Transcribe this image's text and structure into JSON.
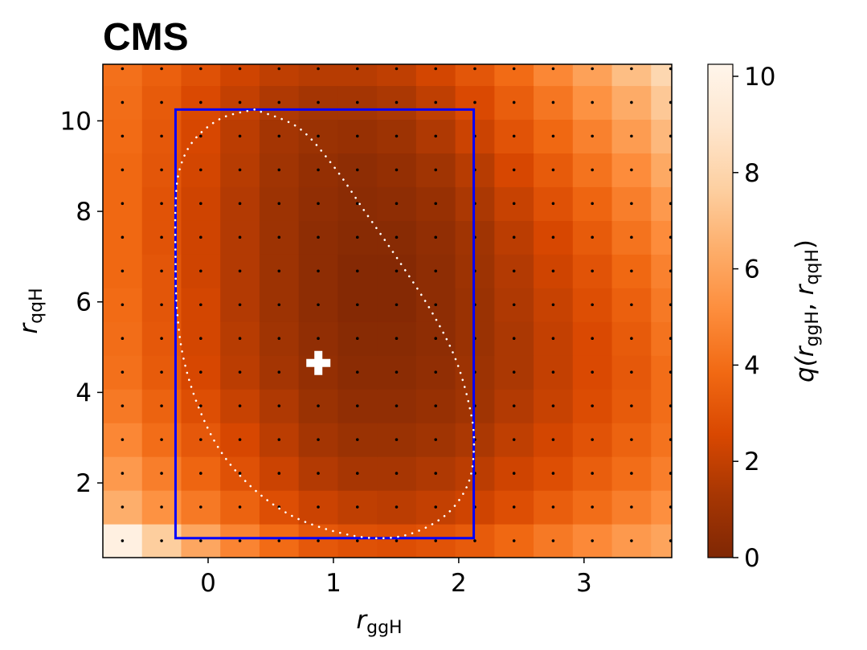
{
  "chart_data": {
    "type": "heatmap",
    "title": "CMS",
    "xlabel": {
      "main": "r",
      "sub": "ggH"
    },
    "ylabel": {
      "main": "r",
      "sub": "qqH"
    },
    "colorbar_label": {
      "q": "q(",
      "r1": "r",
      "sub1": "ggH",
      "comma": ", ",
      "r2": "r",
      "sub2": "qqH",
      "close": ")"
    },
    "xlim": [
      -0.84,
      3.7
    ],
    "ylim": [
      0.35,
      11.25
    ],
    "x_ticks": [
      "0",
      "1",
      "2",
      "3"
    ],
    "x_tick_values": [
      0,
      1,
      2,
      3
    ],
    "y_ticks": [
      "2",
      "4",
      "6",
      "8",
      "10"
    ],
    "y_tick_values": [
      2,
      4,
      6,
      8,
      10
    ],
    "colorbar_ticks": [
      "0",
      "2",
      "4",
      "6",
      "8",
      "10"
    ],
    "colorbar_tick_values": [
      0,
      2,
      4,
      6,
      8,
      10
    ],
    "colorbar_range": [
      0,
      10.25
    ],
    "grid_x_start": -0.84,
    "grid_x_step": 0.3125,
    "grid_y_start": 0.35,
    "grid_y_step": 0.745,
    "z": [
      [
        9.8,
        7.6,
        6.1,
        4.8,
        3.9,
        3.2,
        2.9,
        2.8,
        3.0,
        3.3,
        3.8,
        4.4,
        5.0,
        5.6,
        6.0
      ],
      [
        6.4,
        5.3,
        4.4,
        3.6,
        2.8,
        2.2,
        1.9,
        1.8,
        2.0,
        2.3,
        2.8,
        3.4,
        4.0,
        4.6,
        5.2
      ],
      [
        5.6,
        4.6,
        3.7,
        2.9,
        2.2,
        1.6,
        1.3,
        1.3,
        1.5,
        1.8,
        2.3,
        2.8,
        3.4,
        4.0,
        4.6
      ],
      [
        4.9,
        4.0,
        3.2,
        2.5,
        1.8,
        1.2,
        0.9,
        0.9,
        1.1,
        1.4,
        1.9,
        2.4,
        3.0,
        3.6,
        4.2
      ],
      [
        4.4,
        3.6,
        2.8,
        2.1,
        1.5,
        0.9,
        0.6,
        0.6,
        0.8,
        1.1,
        1.6,
        2.1,
        2.7,
        3.3,
        4.0
      ],
      [
        4.1,
        3.3,
        2.5,
        1.8,
        1.2,
        0.7,
        0.4,
        0.4,
        0.6,
        1.0,
        1.4,
        2.0,
        2.6,
        3.2,
        4.0
      ],
      [
        4.0,
        3.2,
        2.4,
        1.7,
        1.1,
        0.6,
        0.3,
        0.3,
        0.5,
        0.9,
        1.4,
        2.0,
        2.6,
        3.3,
        4.2
      ],
      [
        3.9,
        3.1,
        2.4,
        1.6,
        1.0,
        0.5,
        0.2,
        0.2,
        0.5,
        0.9,
        1.5,
        2.1,
        2.8,
        3.5,
        4.4
      ],
      [
        3.8,
        3.1,
        2.3,
        1.6,
        1.0,
        0.5,
        0.2,
        0.2,
        0.5,
        1.0,
        1.6,
        2.3,
        3.0,
        3.8,
        4.7
      ],
      [
        3.8,
        3.0,
        2.3,
        1.6,
        1.0,
        0.5,
        0.3,
        0.3,
        0.6,
        1.1,
        1.8,
        2.5,
        3.3,
        4.2,
        5.1
      ],
      [
        3.8,
        3.0,
        2.3,
        1.6,
        1.0,
        0.6,
        0.4,
        0.5,
        0.8,
        1.4,
        2.1,
        2.9,
        3.7,
        4.6,
        5.6
      ],
      [
        3.8,
        3.1,
        2.4,
        1.7,
        1.1,
        0.7,
        0.5,
        0.7,
        1.1,
        1.7,
        2.5,
        3.3,
        4.2,
        5.1,
        6.2
      ],
      [
        3.9,
        3.2,
        2.5,
        1.8,
        1.2,
        0.9,
        0.8,
        1.0,
        1.5,
        2.2,
        3.0,
        3.8,
        4.7,
        5.7,
        6.8
      ],
      [
        4.0,
        3.3,
        2.6,
        2.0,
        1.5,
        1.2,
        1.2,
        1.4,
        1.9,
        2.6,
        3.4,
        4.3,
        5.3,
        6.3,
        7.4
      ],
      [
        4.1,
        3.5,
        2.9,
        2.3,
        1.9,
        1.7,
        1.7,
        1.9,
        2.4,
        3.1,
        3.9,
        4.9,
        5.9,
        7.0,
        8.1
      ],
      [
        4.2,
        3.7,
        3.1,
        2.6,
        2.3,
        2.2,
        2.2,
        2.4,
        2.9,
        3.6,
        4.4,
        5.4,
        6.4,
        7.6,
        8.7
      ]
    ],
    "best_fit": {
      "x": 0.88,
      "y": 4.65
    },
    "contour": [
      [
        0.37,
        10.25
      ],
      [
        0.1,
        10.05
      ],
      [
        -0.12,
        9.55
      ],
      [
        -0.23,
        8.9
      ],
      [
        -0.26,
        8.1
      ],
      [
        -0.26,
        7.0
      ],
      [
        -0.25,
        5.9
      ],
      [
        -0.2,
        4.8
      ],
      [
        -0.08,
        3.7
      ],
      [
        0.1,
        2.7
      ],
      [
        0.35,
        1.9
      ],
      [
        0.65,
        1.3
      ],
      [
        0.98,
        0.95
      ],
      [
        1.32,
        0.78
      ],
      [
        1.62,
        0.88
      ],
      [
        1.9,
        1.3
      ],
      [
        2.07,
        1.95
      ],
      [
        2.12,
        2.7
      ],
      [
        2.1,
        3.5
      ],
      [
        1.98,
        4.7
      ],
      [
        1.78,
        5.8
      ],
      [
        1.5,
        7.0
      ],
      [
        1.25,
        8.0
      ],
      [
        1.0,
        9.0
      ],
      [
        0.72,
        9.85
      ],
      [
        0.37,
        10.25
      ]
    ],
    "box": {
      "x0": -0.26,
      "x1": 2.12,
      "y0": 0.78,
      "y1": 10.25
    },
    "colors": {
      "colormap": [
        "#7f2704",
        "#a63603",
        "#d94801",
        "#f16913",
        "#fd8d3c",
        "#fdae6b",
        "#fdd0a2",
        "#fee6ce",
        "#fff5eb"
      ],
      "box": "#0000ff",
      "contour": "#ffffff",
      "marker": "#ffffff",
      "grid_dots": "#000000"
    }
  }
}
